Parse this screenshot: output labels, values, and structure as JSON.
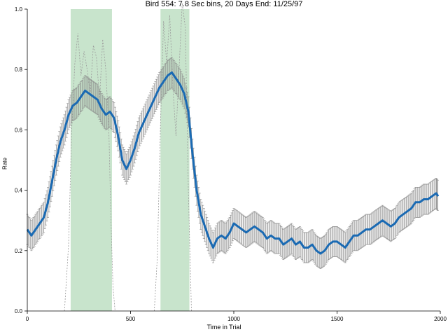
{
  "chart_data": {
    "type": "line",
    "title": "Bird 554: 7.8 Sec bins, 20 Days End: 11/25/97",
    "xlabel": "Time in Trial",
    "ylabel": "Rate",
    "xlim": [
      0,
      2000
    ],
    "ylim": [
      0,
      1.0
    ],
    "xticks": [
      "0",
      "500",
      "1000",
      "1500",
      "2000"
    ],
    "xtick_values": [
      0,
      500,
      1000,
      1500,
      2000
    ],
    "yticks": [
      "0.0",
      "0.2",
      "0.4",
      "0.6",
      "0.8",
      "1.0"
    ],
    "ytick_values": [
      0.0,
      0.2,
      0.4,
      0.6,
      0.8,
      1.0
    ],
    "grid": false,
    "shaded_regions": [
      {
        "x0": 210,
        "x1": 410,
        "color": "#c8e4cc"
      },
      {
        "x0": 645,
        "x1": 785,
        "color": "#c8e4cc"
      }
    ],
    "series": [
      {
        "role": "mean",
        "color": "#1a6ab3",
        "x": [
          0,
          20,
          40,
          60,
          80,
          100,
          120,
          140,
          160,
          180,
          200,
          220,
          240,
          260,
          280,
          300,
          320,
          340,
          360,
          380,
          400,
          420,
          440,
          460,
          480,
          500,
          520,
          540,
          560,
          580,
          600,
          620,
          640,
          660,
          680,
          700,
          720,
          740,
          760,
          780,
          800,
          820,
          840,
          860,
          880,
          900,
          920,
          940,
          960,
          980,
          1000,
          1020,
          1040,
          1060,
          1080,
          1100,
          1120,
          1140,
          1160,
          1180,
          1200,
          1220,
          1240,
          1260,
          1280,
          1300,
          1320,
          1340,
          1360,
          1380,
          1400,
          1420,
          1440,
          1460,
          1480,
          1500,
          1520,
          1540,
          1560,
          1580,
          1600,
          1620,
          1640,
          1660,
          1680,
          1700,
          1720,
          1740,
          1760,
          1780,
          1800,
          1820,
          1840,
          1860,
          1880,
          1900,
          1920,
          1940,
          1960,
          1980,
          1990
        ],
        "y": [
          0.27,
          0.25,
          0.27,
          0.29,
          0.31,
          0.36,
          0.43,
          0.5,
          0.56,
          0.6,
          0.65,
          0.68,
          0.69,
          0.71,
          0.73,
          0.72,
          0.71,
          0.7,
          0.67,
          0.65,
          0.66,
          0.64,
          0.58,
          0.5,
          0.47,
          0.5,
          0.54,
          0.59,
          0.62,
          0.65,
          0.68,
          0.71,
          0.74,
          0.76,
          0.78,
          0.79,
          0.77,
          0.75,
          0.72,
          0.66,
          0.52,
          0.4,
          0.32,
          0.28,
          0.24,
          0.21,
          0.24,
          0.25,
          0.24,
          0.26,
          0.29,
          0.28,
          0.27,
          0.26,
          0.27,
          0.28,
          0.27,
          0.26,
          0.24,
          0.25,
          0.24,
          0.24,
          0.22,
          0.23,
          0.24,
          0.22,
          0.23,
          0.21,
          0.21,
          0.22,
          0.2,
          0.19,
          0.2,
          0.22,
          0.23,
          0.23,
          0.22,
          0.21,
          0.23,
          0.25,
          0.25,
          0.26,
          0.27,
          0.27,
          0.28,
          0.29,
          0.3,
          0.29,
          0.28,
          0.29,
          0.31,
          0.32,
          0.33,
          0.34,
          0.36,
          0.36,
          0.37,
          0.37,
          0.38,
          0.39,
          0.38
        ]
      },
      {
        "role": "individual",
        "color": "#9a9a9a",
        "dashed": true,
        "x": [
          180,
          200,
          215,
          230,
          245,
          260,
          275,
          290,
          305,
          320,
          335,
          350,
          365,
          380,
          395,
          405,
          415,
          425
        ],
        "y": [
          0.0,
          0.22,
          0.6,
          0.82,
          0.92,
          0.78,
          0.86,
          0.8,
          0.72,
          0.88,
          0.84,
          0.7,
          0.9,
          0.8,
          0.6,
          0.3,
          0.08,
          0.0
        ]
      },
      {
        "role": "individual",
        "color": "#9a9a9a",
        "dashed": true,
        "x": [
          615,
          630,
          645,
          660,
          675,
          690,
          705,
          720,
          735,
          750,
          765,
          780,
          795
        ],
        "y": [
          0.0,
          0.18,
          0.62,
          0.96,
          0.82,
          0.98,
          0.74,
          0.58,
          0.8,
          1.02,
          0.94,
          0.4,
          0.0
        ]
      }
    ]
  }
}
